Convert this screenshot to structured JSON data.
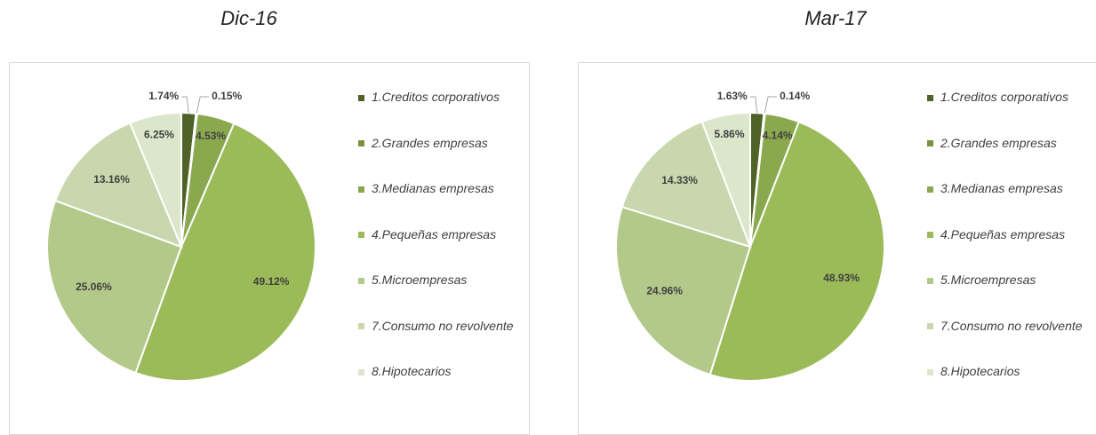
{
  "chart_data": [
    {
      "type": "pie",
      "title": "Dic-16",
      "categories": [
        "1.Creditos corporativos",
        "2.Grandes empresas",
        "3.Medianas empresas",
        "4.Pequeñas empresas",
        "5.Microempresas",
        "7.Consumo no revolvente",
        "8.Hipotecarios"
      ],
      "values": [
        1.74,
        0.15,
        4.53,
        49.12,
        25.06,
        13.16,
        6.25
      ],
      "value_labels": [
        "1.74%",
        "0.15%",
        "4.53%",
        "49.12%",
        "25.06%",
        "13.16%",
        "6.25%"
      ],
      "colors": [
        "#4f6228",
        "#77933c",
        "#8aa84e",
        "#9bbb59",
        "#b3c98a",
        "#c8d7ad",
        "#dce6cb"
      ],
      "legend": "right"
    },
    {
      "type": "pie",
      "title": "Mar-17",
      "categories": [
        "1.Creditos corporativos",
        "2.Grandes empresas",
        "3.Medianas empresas",
        "4.Pequeñas empresas",
        "5.Microempresas",
        "7.Consumo no revolvente",
        "8.Hipotecarios"
      ],
      "values": [
        1.63,
        0.14,
        4.14,
        48.93,
        24.96,
        14.33,
        5.86
      ],
      "value_labels": [
        "1.63%",
        "0.14%",
        "4.14%",
        "48.93%",
        "24.96%",
        "14.33%",
        "5.86%"
      ],
      "colors": [
        "#4f6228",
        "#77933c",
        "#8aa84e",
        "#9bbb59",
        "#b3c98a",
        "#c8d7ad",
        "#dce6cb"
      ],
      "legend": "right"
    }
  ]
}
